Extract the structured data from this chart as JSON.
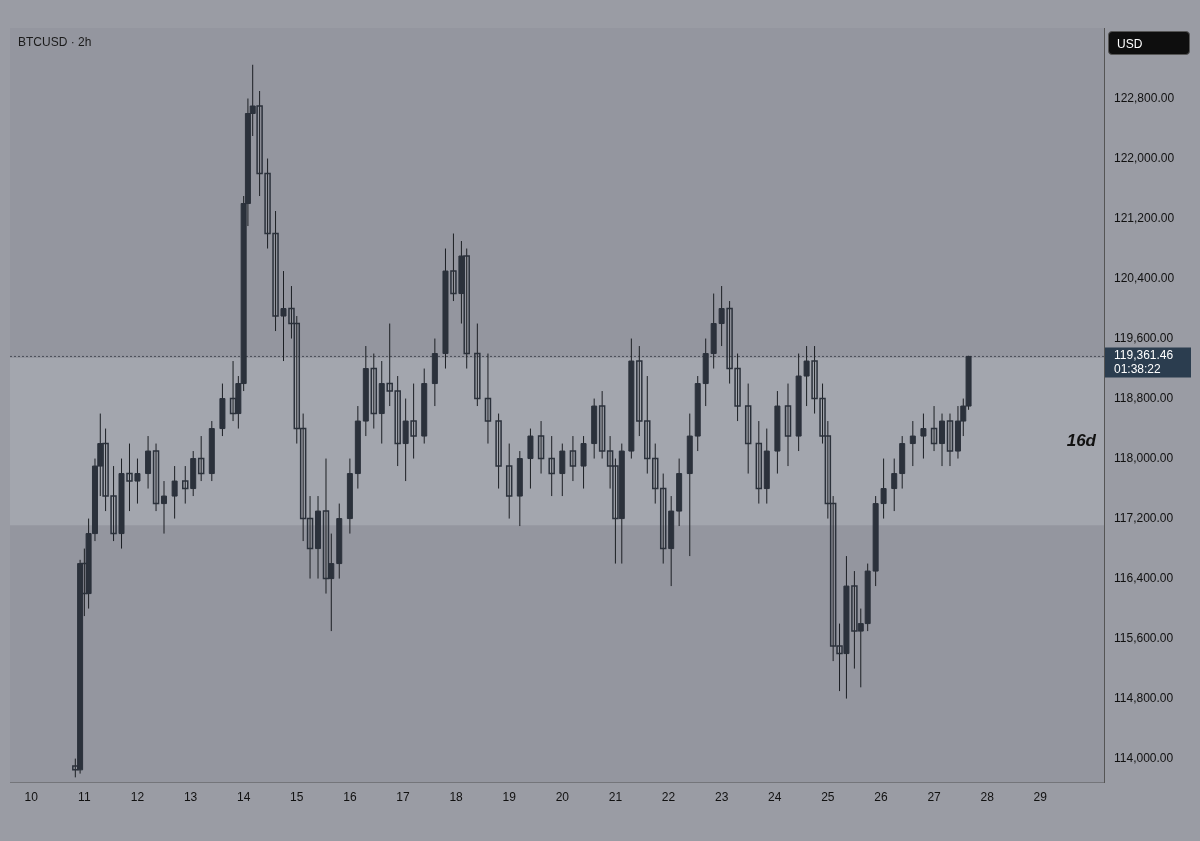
{
  "chart_data": {
    "type": "candlestick",
    "title": "BTCUSD · 2h",
    "x": [
      10.83,
      10.92,
      11.0,
      11.08,
      11.2,
      11.3,
      11.4,
      11.55,
      11.7,
      11.85,
      12.0,
      12.2,
      12.35,
      12.5,
      12.7,
      12.9,
      13.05,
      13.2,
      13.4,
      13.6,
      13.8,
      13.9,
      14.0,
      14.08,
      14.17,
      14.3,
      14.45,
      14.6,
      14.75,
      14.9,
      15.0,
      15.12,
      15.25,
      15.4,
      15.55,
      15.65,
      15.8,
      16.0,
      16.15,
      16.3,
      16.45,
      16.6,
      16.75,
      16.9,
      17.05,
      17.2,
      17.4,
      17.6,
      17.8,
      17.95,
      18.1,
      18.2,
      18.4,
      18.6,
      18.8,
      19.0,
      19.2,
      19.4,
      19.6,
      19.8,
      20.0,
      20.2,
      20.4,
      20.6,
      20.75,
      20.9,
      21.0,
      21.12,
      21.3,
      21.45,
      21.6,
      21.75,
      21.9,
      22.05,
      22.2,
      22.4,
      22.55,
      22.7,
      22.85,
      23.0,
      23.15,
      23.3,
      23.5,
      23.7,
      23.85,
      24.05,
      24.25,
      24.45,
      24.6,
      24.75,
      24.9,
      25.0,
      25.1,
      25.22,
      25.35,
      25.5,
      25.62,
      25.75,
      25.9,
      26.05,
      26.25,
      26.4,
      26.6,
      26.8,
      27.0,
      27.15,
      27.3,
      27.45,
      27.55,
      27.65
    ],
    "ohlc": [
      [
        113900,
        114000,
        113750,
        113850
      ],
      [
        113850,
        116650,
        113800,
        116600
      ],
      [
        116600,
        116800,
        115900,
        116200
      ],
      [
        116200,
        117200,
        116000,
        117000
      ],
      [
        117000,
        118000,
        116900,
        117900
      ],
      [
        117900,
        118600,
        117500,
        118200
      ],
      [
        118200,
        118400,
        117300,
        117500
      ],
      [
        117500,
        117900,
        116900,
        117000
      ],
      [
        117000,
        118000,
        116800,
        117800
      ],
      [
        117800,
        118200,
        117300,
        117700
      ],
      [
        117700,
        118000,
        117400,
        117800
      ],
      [
        117800,
        118300,
        117600,
        118100
      ],
      [
        118100,
        118200,
        117300,
        117400
      ],
      [
        117400,
        117700,
        117000,
        117500
      ],
      [
        117500,
        117900,
        117200,
        117700
      ],
      [
        117700,
        117900,
        117400,
        117600
      ],
      [
        117600,
        118100,
        117500,
        118000
      ],
      [
        118000,
        118300,
        117700,
        117800
      ],
      [
        117800,
        118500,
        117700,
        118400
      ],
      [
        118400,
        119000,
        118300,
        118800
      ],
      [
        118800,
        119300,
        118500,
        118600
      ],
      [
        118600,
        119100,
        118400,
        119000
      ],
      [
        119000,
        121500,
        118900,
        121400
      ],
      [
        121400,
        122800,
        121100,
        122600
      ],
      [
        122600,
        123250,
        122300,
        122700
      ],
      [
        122700,
        122900,
        121500,
        121800
      ],
      [
        121800,
        122000,
        120800,
        121000
      ],
      [
        121000,
        121300,
        119700,
        119900
      ],
      [
        119900,
        120500,
        119300,
        120000
      ],
      [
        120000,
        120300,
        119600,
        119800
      ],
      [
        119800,
        119900,
        118200,
        118400
      ],
      [
        118400,
        118600,
        116900,
        117200
      ],
      [
        117200,
        117500,
        116400,
        116800
      ],
      [
        116800,
        117500,
        116400,
        117300
      ],
      [
        117300,
        118000,
        116200,
        116400
      ],
      [
        116400,
        117000,
        115700,
        116600
      ],
      [
        116600,
        117400,
        116400,
        117200
      ],
      [
        117200,
        118000,
        117000,
        117800
      ],
      [
        117800,
        118700,
        117600,
        118500
      ],
      [
        118500,
        119500,
        118300,
        119200
      ],
      [
        119200,
        119400,
        118400,
        118600
      ],
      [
        118600,
        119300,
        118200,
        119000
      ],
      [
        119000,
        119800,
        118700,
        118900
      ],
      [
        118900,
        119100,
        117900,
        118200
      ],
      [
        118200,
        118800,
        117700,
        118500
      ],
      [
        118500,
        119000,
        118000,
        118300
      ],
      [
        118300,
        119200,
        118200,
        119000
      ],
      [
        119000,
        119600,
        118700,
        119400
      ],
      [
        119400,
        120800,
        119200,
        120500
      ],
      [
        120500,
        121000,
        120100,
        120200
      ],
      [
        120200,
        120900,
        119800,
        120700
      ],
      [
        120700,
        120800,
        119200,
        119400
      ],
      [
        119400,
        119800,
        118700,
        118800
      ],
      [
        118800,
        119400,
        118200,
        118500
      ],
      [
        118500,
        118600,
        117600,
        117900
      ],
      [
        117900,
        118200,
        117200,
        117500
      ],
      [
        117500,
        118100,
        117100,
        118000
      ],
      [
        118000,
        118400,
        117600,
        118300
      ],
      [
        118300,
        118500,
        117800,
        118000
      ],
      [
        118000,
        118300,
        117500,
        117800
      ],
      [
        117800,
        118200,
        117500,
        118100
      ],
      [
        118100,
        118300,
        117700,
        117900
      ],
      [
        117900,
        118300,
        117600,
        118200
      ],
      [
        118200,
        118800,
        118000,
        118700
      ],
      [
        118700,
        118900,
        118000,
        118100
      ],
      [
        118100,
        118300,
        117600,
        117900
      ],
      [
        117900,
        118000,
        116600,
        117200
      ],
      [
        117200,
        118200,
        116600,
        118100
      ],
      [
        118100,
        119600,
        118000,
        119300
      ],
      [
        119300,
        119500,
        118300,
        118500
      ],
      [
        118500,
        119100,
        117800,
        118000
      ],
      [
        118000,
        118200,
        117400,
        117600
      ],
      [
        117600,
        117800,
        116600,
        116800
      ],
      [
        116800,
        117500,
        116300,
        117300
      ],
      [
        117300,
        118000,
        117100,
        117800
      ],
      [
        117800,
        118600,
        116700,
        118300
      ],
      [
        118300,
        119100,
        118100,
        119000
      ],
      [
        119000,
        119600,
        118700,
        119400
      ],
      [
        119400,
        120200,
        119200,
        119800
      ],
      [
        119800,
        120300,
        119500,
        120000
      ],
      [
        120000,
        120100,
        119000,
        119200
      ],
      [
        119200,
        119400,
        118500,
        118700
      ],
      [
        118700,
        119000,
        117800,
        118200
      ],
      [
        118200,
        118500,
        117400,
        117600
      ],
      [
        117600,
        118400,
        117400,
        118100
      ],
      [
        118100,
        118900,
        117800,
        118700
      ],
      [
        118700,
        119000,
        117900,
        118300
      ],
      [
        118300,
        119400,
        118100,
        119100
      ],
      [
        119100,
        119500,
        118700,
        119300
      ],
      [
        119300,
        119500,
        118600,
        118800
      ],
      [
        118800,
        119000,
        118200,
        118300
      ],
      [
        118300,
        118500,
        117200,
        117400
      ],
      [
        117400,
        117500,
        115300,
        115500
      ],
      [
        115500,
        115800,
        114900,
        115400
      ],
      [
        115400,
        116700,
        114800,
        116300
      ],
      [
        116300,
        116500,
        115200,
        115700
      ],
      [
        115700,
        116000,
        114950,
        115800
      ],
      [
        115800,
        116600,
        115700,
        116500
      ],
      [
        116500,
        117500,
        116300,
        117400
      ],
      [
        117400,
        118000,
        117200,
        117600
      ],
      [
        117600,
        118000,
        117300,
        117800
      ],
      [
        117800,
        118300,
        117600,
        118200
      ],
      [
        118200,
        118500,
        117900,
        118300
      ],
      [
        118300,
        118600,
        118000,
        118400
      ],
      [
        118400,
        118700,
        118100,
        118200
      ],
      [
        118200,
        118600,
        117900,
        118500
      ],
      [
        118500,
        118600,
        117900,
        118100
      ],
      [
        118100,
        118700,
        118000,
        118500
      ],
      [
        118500,
        118800,
        118300,
        118700
      ],
      [
        118700,
        119370,
        118650,
        119361.46
      ]
    ],
    "color": "#2b313b",
    "xlim": [
      9.6,
      30.2
    ],
    "xticks": [
      10,
      11,
      12,
      13,
      14,
      15,
      16,
      17,
      18,
      19,
      20,
      21,
      22,
      23,
      24,
      25,
      26,
      27,
      28,
      29
    ],
    "ylim": [
      113680,
      123740
    ],
    "yticks": [
      {
        "value": 114000,
        "label": "114,000.00"
      },
      {
        "value": 114800,
        "label": "114,800.00"
      },
      {
        "value": 115600,
        "label": "115,600.00"
      },
      {
        "value": 116400,
        "label": "116,400.00"
      },
      {
        "value": 117200,
        "label": "117,200.00"
      },
      {
        "value": 118000,
        "label": "118,000.00"
      },
      {
        "value": 118800,
        "label": "118,800.00"
      },
      {
        "value": 119600,
        "label": "119,600.00"
      },
      {
        "value": 120400,
        "label": "120,400.00"
      },
      {
        "value": 121200,
        "label": "121,200.00"
      },
      {
        "value": 122000,
        "label": "122,000.00"
      },
      {
        "value": 122800,
        "label": "122,800.00"
      }
    ],
    "ref_lines": [
      {
        "axis": "y",
        "value": 119361.46,
        "label": "119,361.46",
        "color": "#4a4e58",
        "line_style": "dotted"
      }
    ],
    "bands": [
      {
        "axis": "y",
        "from": 117110,
        "to": 119340,
        "label": "16d",
        "color": "#a3a6ae"
      }
    ],
    "annotations": [
      "USD",
      "01:38:22"
    ],
    "legend": false
  }
}
